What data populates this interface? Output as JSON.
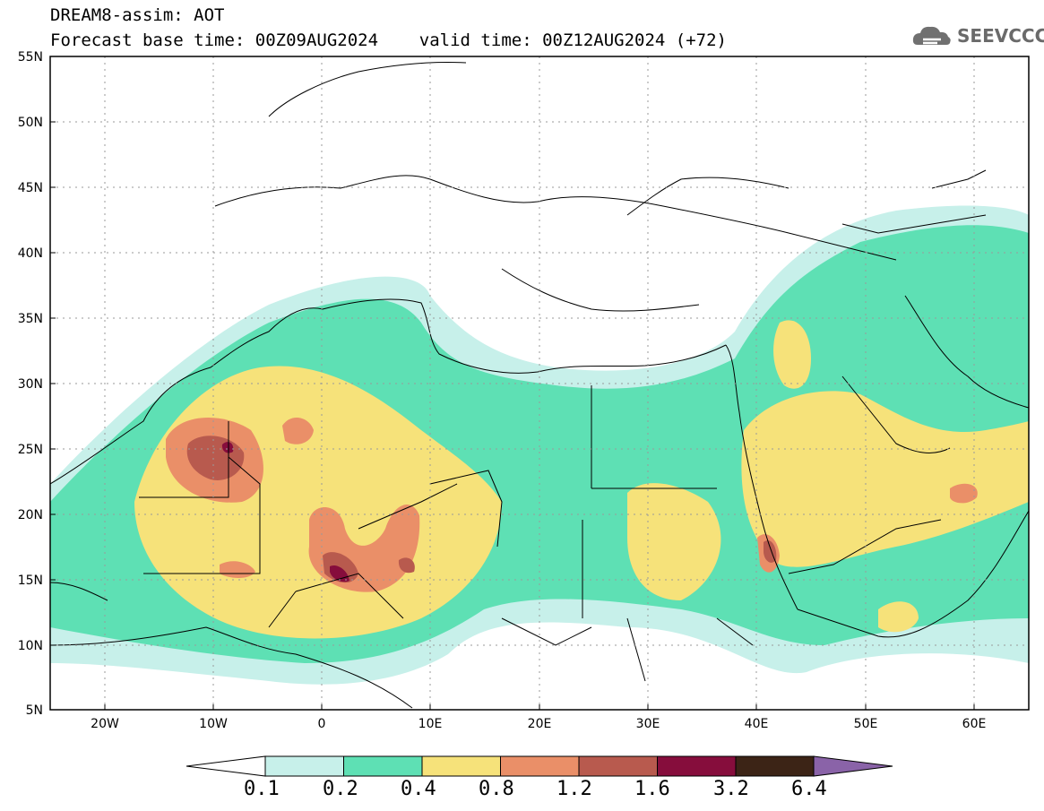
{
  "header": {
    "line1": "DREAM8-assim: AOT",
    "line2": "Forecast base time: 00Z09AUG2024    valid time: 00Z12AUG2024 (+72)"
  },
  "logo": {
    "text": "SEEVCCC",
    "icon": "cloud-icon"
  },
  "map": {
    "lat_ticks": [
      "55N",
      "50N",
      "45N",
      "40N",
      "35N",
      "30N",
      "25N",
      "20N",
      "15N",
      "10N",
      "5N"
    ],
    "lon_ticks": [
      "20W",
      "10W",
      "0",
      "10E",
      "20E",
      "30E",
      "40E",
      "50E",
      "60E"
    ],
    "lat_range": [
      5,
      55
    ],
    "lon_range": [
      -25,
      65
    ],
    "grid": "dotted"
  },
  "colorbar": {
    "labels": [
      "0.1",
      "0.2",
      "0.4",
      "0.8",
      "1.2",
      "1.6",
      "3.2",
      "6.4"
    ],
    "colors": [
      "#c7f0ea",
      "#5ee0b4",
      "#f6e27a",
      "#ea8f68",
      "#b85a4e",
      "#860d3c",
      "#3c2416",
      "#8a63a8"
    ]
  }
}
